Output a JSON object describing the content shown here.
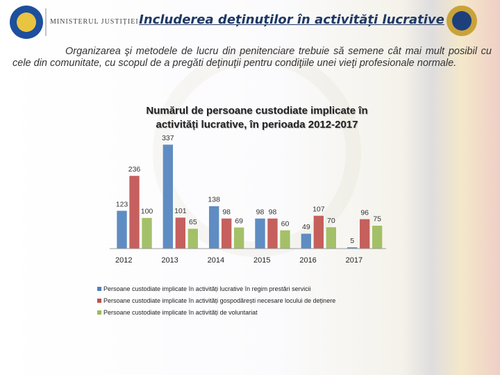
{
  "header": {
    "ministry": "MINISTERUL JUSTIȚIEI",
    "title": "Includerea deținuților în activități lucrative"
  },
  "paragraph": "Organizarea şi metodele de lucru din penitenciare trebuie să semene cât mai mult posibil cu cele din comunitate, cu scopul de a pregăti deţinuţii pentru condiţiile unei vieţi profesionale normale.",
  "chart_data": {
    "type": "bar",
    "title": "Numărul de persoane custodiate implicate în activități lucrative, în perioada 2012-2017",
    "categories": [
      "2012",
      "2013",
      "2014",
      "2015",
      "2016",
      "2017"
    ],
    "series": [
      {
        "name": "Persoane custodiate implicate în activități lucrative în regim prestări servicii",
        "color": "#4f81bd",
        "values": [
          123,
          337,
          138,
          98,
          49,
          5
        ]
      },
      {
        "name": "Persoane custodiate implicate în activități gospodărești necesare locului de deținere",
        "color": "#c0504d",
        "values": [
          236,
          101,
          98,
          98,
          107,
          96
        ]
      },
      {
        "name": "Persoane custodiate implicate în activități de voluntariat",
        "color": "#9bbb59",
        "values": [
          100,
          65,
          69,
          60,
          70,
          75
        ]
      }
    ]
  }
}
